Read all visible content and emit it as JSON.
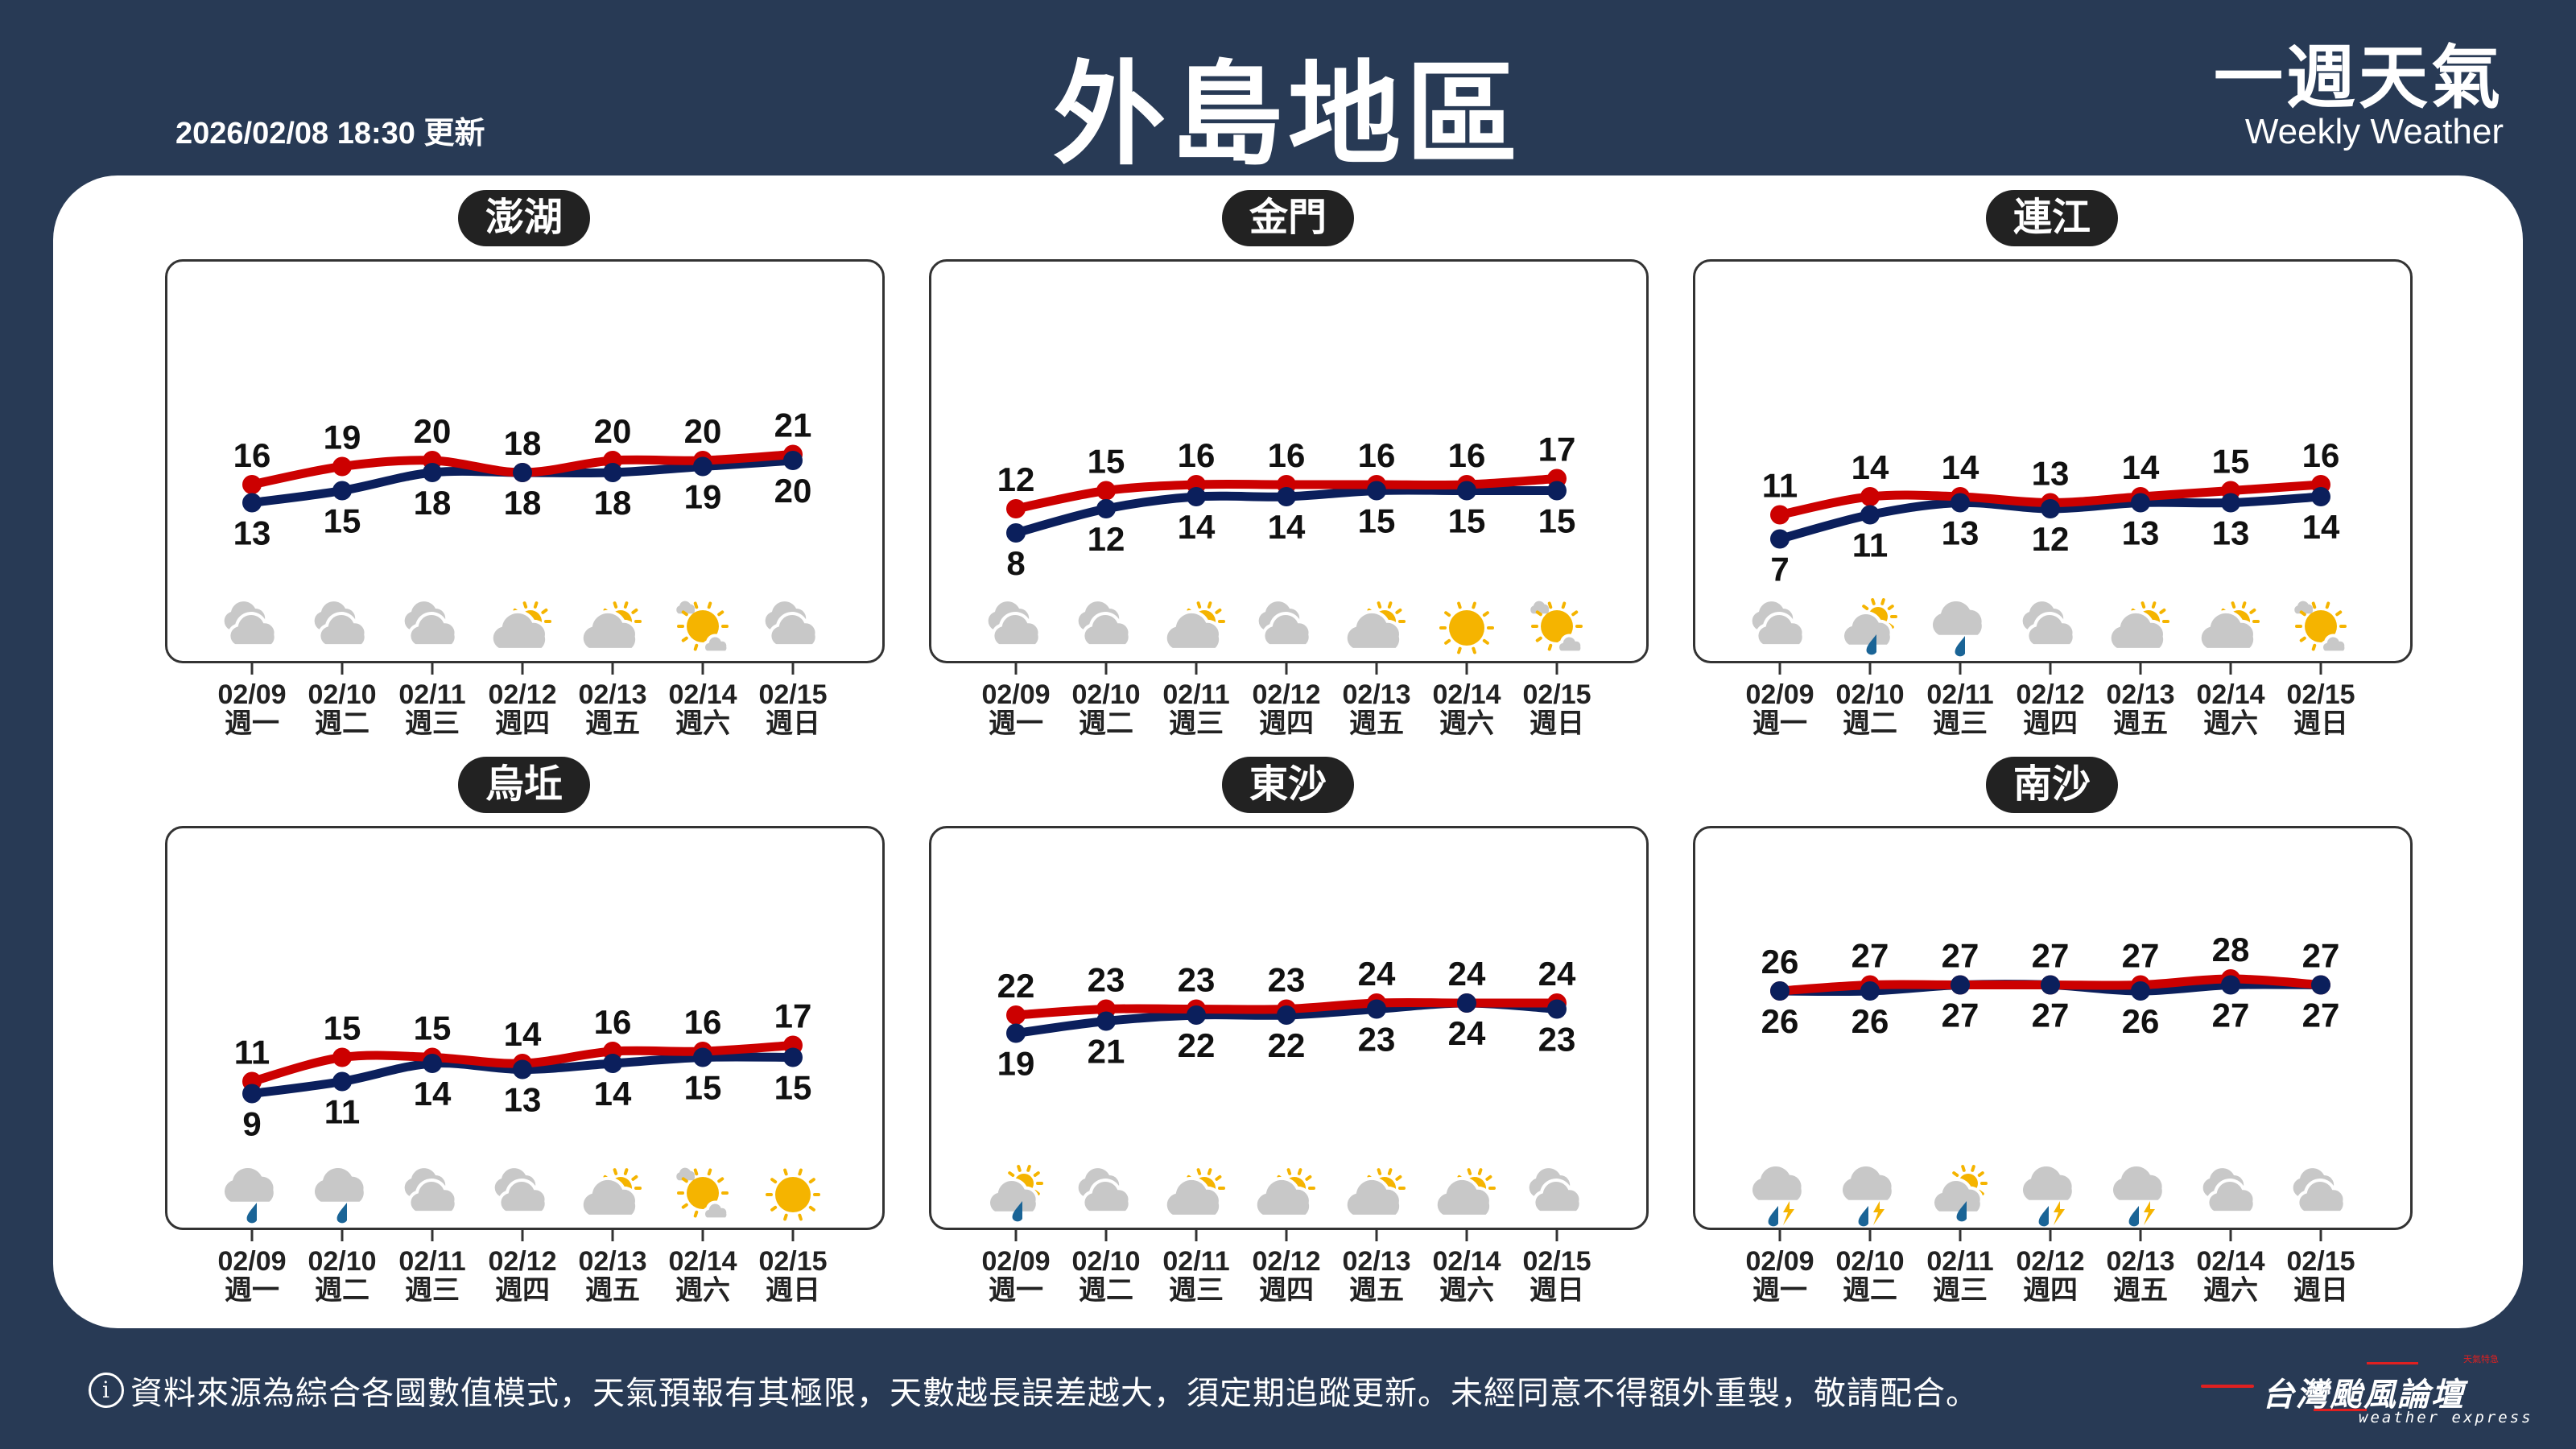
{
  "header": {
    "title": "外島地區",
    "updated": "2026/02/08 18:30 更新",
    "brand_zh": "一週天氣",
    "brand_en": "Weekly Weather"
  },
  "colors": {
    "background": "#283a55",
    "high": "#cc0000",
    "low": "#0b1f5c",
    "sun": "#f5b400",
    "cloud": "#c8c8c8",
    "rain": "#1a6496"
  },
  "days": [
    {
      "date": "02/09",
      "weekday": "週一"
    },
    {
      "date": "02/10",
      "weekday": "週二"
    },
    {
      "date": "02/11",
      "weekday": "週三"
    },
    {
      "date": "02/12",
      "weekday": "週四"
    },
    {
      "date": "02/13",
      "weekday": "週五"
    },
    {
      "date": "02/14",
      "weekday": "週六"
    },
    {
      "date": "02/15",
      "weekday": "週日"
    }
  ],
  "chart_data": [
    {
      "type": "line",
      "title": "澎湖",
      "series": [
        {
          "values": [
            16,
            19,
            20,
            18,
            20,
            20,
            21
          ]
        },
        {
          "values": [
            13,
            15,
            18,
            18,
            18,
            19,
            20
          ]
        }
      ],
      "icons": [
        "cloudy",
        "cloudy",
        "cloudy",
        "partly-cloudy",
        "partly-cloudy",
        "sunny-cloud",
        "cloudy"
      ]
    },
    {
      "type": "line",
      "title": "金門",
      "series": [
        {
          "values": [
            12,
            15,
            16,
            16,
            16,
            16,
            17
          ]
        },
        {
          "values": [
            8,
            12,
            14,
            14,
            15,
            15,
            15
          ]
        }
      ],
      "icons": [
        "cloudy",
        "cloudy",
        "partly-cloudy",
        "cloudy",
        "partly-cloudy",
        "sunny",
        "sunny-cloud"
      ]
    },
    {
      "type": "line",
      "title": "連江",
      "series": [
        {
          "values": [
            11,
            14,
            14,
            13,
            14,
            15,
            16
          ]
        },
        {
          "values": [
            7,
            11,
            13,
            12,
            13,
            13,
            14
          ]
        }
      ],
      "icons": [
        "cloudy",
        "partly-rain",
        "rain",
        "cloudy",
        "partly-cloudy",
        "partly-cloudy",
        "sunny-cloud"
      ]
    },
    {
      "type": "line",
      "title": "烏坵",
      "series": [
        {
          "values": [
            11,
            15,
            15,
            14,
            16,
            16,
            17
          ]
        },
        {
          "values": [
            9,
            11,
            14,
            13,
            14,
            15,
            15
          ]
        }
      ],
      "icons": [
        "rain",
        "rain",
        "cloudy",
        "cloudy",
        "partly-cloudy",
        "sunny-cloud",
        "sunny"
      ]
    },
    {
      "type": "line",
      "title": "東沙",
      "series": [
        {
          "values": [
            22,
            23,
            23,
            23,
            24,
            24,
            24
          ]
        },
        {
          "values": [
            19,
            21,
            22,
            22,
            23,
            24,
            23
          ]
        }
      ],
      "icons": [
        "partly-rain",
        "cloudy",
        "partly-cloudy",
        "partly-cloudy",
        "partly-cloudy",
        "partly-cloudy",
        "cloudy"
      ]
    },
    {
      "type": "line",
      "title": "南沙",
      "series": [
        {
          "values": [
            26,
            27,
            27,
            27,
            27,
            28,
            27
          ]
        },
        {
          "values": [
            26,
            26,
            27,
            27,
            26,
            27,
            27
          ]
        }
      ],
      "icons": [
        "thunder-rain",
        "thunder-rain",
        "partly-rain",
        "thunder-rain",
        "thunder-rain",
        "cloudy",
        "cloudy"
      ]
    }
  ],
  "footer": {
    "text": "資料來源為綜合各國數值模式，天氣預報有其極限，天數越長誤差越大，須定期追蹤更新。未經同意不得額外重製，敬請配合。",
    "info_icon": "i",
    "logo_main": "台灣颱風論壇",
    "logo_sub": "weather express",
    "logo_tag": "天氣特急"
  }
}
